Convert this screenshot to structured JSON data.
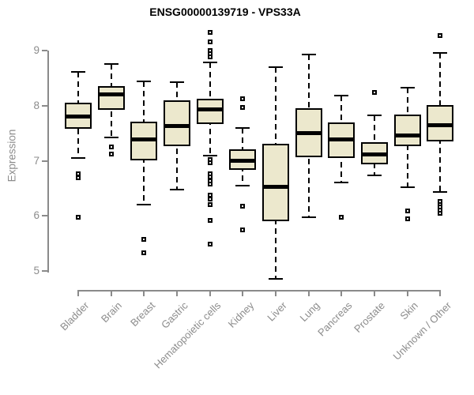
{
  "chart_data": {
    "type": "boxplot",
    "title": "ENSG00000139719 - VPS33A",
    "ylabel": "Expression",
    "xlabel": "",
    "yticks": [
      5,
      6,
      7,
      8,
      9
    ],
    "ylim": [
      4.8,
      9.4
    ],
    "grid": false,
    "legend": null,
    "categories": [
      "Bladder",
      "Brain",
      "Breast",
      "Gastric",
      "Hematopoietic cells",
      "Kidney",
      "Liver",
      "Lung",
      "Pancreas",
      "Prostate",
      "Skin",
      "Unknown / Other"
    ],
    "boxes": [
      {
        "category": "Bladder",
        "whisker_low": 7.05,
        "q1": 7.58,
        "median": 7.8,
        "q3": 8.06,
        "whisker_high": 8.62,
        "outliers": [
          6.76,
          6.69,
          5.98
        ]
      },
      {
        "category": "Brain",
        "whisker_low": 7.42,
        "q1": 7.92,
        "median": 8.21,
        "q3": 8.36,
        "whisker_high": 8.75,
        "outliers": [
          7.25,
          7.12
        ]
      },
      {
        "category": "Breast",
        "whisker_low": 6.21,
        "q1": 7.01,
        "median": 7.39,
        "q3": 7.71,
        "whisker_high": 8.44,
        "outliers": [
          5.57,
          5.33
        ]
      },
      {
        "category": "Gastric",
        "whisker_low": 6.47,
        "q1": 7.27,
        "median": 7.63,
        "q3": 8.1,
        "whisker_high": 8.43,
        "outliers": []
      },
      {
        "category": "Hematopoietic cells",
        "whisker_low": 7.1,
        "q1": 7.67,
        "median": 7.93,
        "q3": 8.13,
        "whisker_high": 8.78,
        "outliers": [
          9.33,
          9.16,
          9.0,
          8.94,
          8.89,
          7.02,
          6.96,
          6.76,
          6.7,
          6.64,
          6.58,
          6.37,
          6.3,
          6.2,
          5.92,
          5.49
        ]
      },
      {
        "category": "Kidney",
        "whisker_low": 6.55,
        "q1": 6.83,
        "median": 7.0,
        "q3": 7.21,
        "whisker_high": 7.6,
        "outliers": [
          8.12,
          7.97,
          6.17,
          5.74
        ]
      },
      {
        "category": "Liver",
        "whisker_low": 4.86,
        "q1": 5.91,
        "median": 6.53,
        "q3": 7.31,
        "whisker_high": 8.7,
        "outliers": []
      },
      {
        "category": "Lung",
        "whisker_low": 5.97,
        "q1": 7.06,
        "median": 7.5,
        "q3": 7.96,
        "whisker_high": 8.93,
        "outliers": []
      },
      {
        "category": "Pancreas",
        "whisker_low": 6.6,
        "q1": 7.05,
        "median": 7.38,
        "q3": 7.69,
        "whisker_high": 8.18,
        "outliers": [
          5.98
        ]
      },
      {
        "category": "Prostate",
        "whisker_low": 6.74,
        "q1": 6.93,
        "median": 7.12,
        "q3": 7.33,
        "whisker_high": 7.83,
        "outliers": [
          8.24
        ]
      },
      {
        "category": "Skin",
        "whisker_low": 6.52,
        "q1": 7.27,
        "median": 7.46,
        "q3": 7.84,
        "whisker_high": 8.33,
        "outliers": [
          6.09,
          5.95
        ]
      },
      {
        "category": "Unknown / Other",
        "whisker_low": 6.44,
        "q1": 7.35,
        "median": 7.65,
        "q3": 8.01,
        "whisker_high": 8.96,
        "outliers": [
          9.27,
          6.26,
          6.21,
          6.16,
          6.1,
          6.04
        ]
      }
    ],
    "colors": {
      "box_fill": "#ece8cd",
      "box_border": "#000000",
      "median": "#000000",
      "axis": "#8a8a8a",
      "tick_text": "#8c8c8c",
      "title_text": "#000000",
      "background": "#ffffff"
    }
  }
}
